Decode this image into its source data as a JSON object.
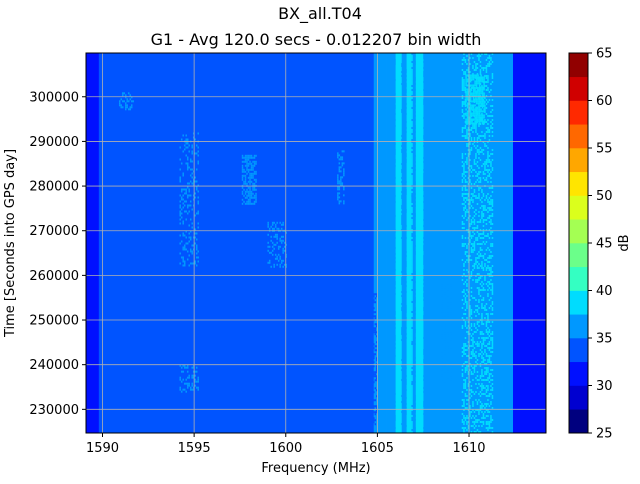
{
  "chart_data": {
    "type": "heatmap",
    "title": "BX_all.T04",
    "subtitle": "G1 - Avg 120.0 secs - 0.012207 bin width",
    "xlabel": "Frequency (MHz)",
    "ylabel": "Time [Seconds into GPS day]",
    "xlim": [
      1589.1,
      1614.2
    ],
    "ylim": [
      224700,
      309800
    ],
    "x_ticks": [
      1590,
      1595,
      1600,
      1605,
      1610
    ],
    "x_tick_labels": [
      "1590",
      "1595",
      "1600",
      "1605",
      "1610"
    ],
    "y_ticks": [
      230000,
      240000,
      250000,
      260000,
      270000,
      280000,
      290000,
      300000
    ],
    "y_tick_labels": [
      "230000",
      "240000",
      "250000",
      "260000",
      "270000",
      "280000",
      "290000",
      "300000"
    ],
    "grid": true,
    "colorbar": {
      "label": "dB",
      "min": 25,
      "max": 65,
      "step": 2.5,
      "ticks": [
        25,
        30,
        35,
        40,
        45,
        50,
        55,
        60,
        65
      ],
      "tick_labels": [
        "25",
        "30",
        "35",
        "40",
        "45",
        "50",
        "55",
        "60",
        "65"
      ],
      "colors": [
        "#00007f",
        "#0000d0",
        "#0010ff",
        "#0054ff",
        "#0098ff",
        "#00dcfe",
        "#34ffc2",
        "#6bff8a",
        "#a4ff53",
        "#dbff1c",
        "#ffe500",
        "#ffa700",
        "#ff6800",
        "#ff2900",
        "#d00000",
        "#910000"
      ]
    },
    "frequency_bands_db": [
      {
        "from": 1589.1,
        "to": 1589.8,
        "db": 31.5
      },
      {
        "from": 1589.8,
        "to": 1604.8,
        "db": 34
      },
      {
        "from": 1604.8,
        "to": 1605.5,
        "db": 36.2
      },
      {
        "from": 1605.5,
        "to": 1606.0,
        "db": 36.8
      },
      {
        "from": 1606.0,
        "to": 1606.3,
        "db": 38.6
      },
      {
        "from": 1606.3,
        "to": 1606.6,
        "db": 36.5
      },
      {
        "from": 1606.6,
        "to": 1606.85,
        "db": 38.6
      },
      {
        "from": 1606.85,
        "to": 1607.1,
        "db": 36.5
      },
      {
        "from": 1607.1,
        "to": 1607.5,
        "db": 38.6
      },
      {
        "from": 1607.5,
        "to": 1608.0,
        "db": 36.5
      },
      {
        "from": 1608.0,
        "to": 1612.4,
        "db": 36.8
      },
      {
        "from": 1612.4,
        "to": 1614.2,
        "db": 31.5
      }
    ],
    "features_db": [
      {
        "f_from": 1609.6,
        "f_to": 1611.3,
        "t_from": 224700,
        "t_to": 309800,
        "db": 39.5,
        "density": 0.35
      },
      {
        "f_from": 1609.8,
        "f_to": 1610.8,
        "t_from": 294000,
        "t_to": 305000,
        "db": 39.5,
        "density": 0.8
      },
      {
        "f_from": 1606.0,
        "f_to": 1606.3,
        "t_from": 224700,
        "t_to": 309800,
        "db": 39,
        "density": 0.7
      },
      {
        "f_from": 1606.6,
        "f_to": 1606.85,
        "t_from": 224700,
        "t_to": 309800,
        "db": 39,
        "density": 0.7
      },
      {
        "f_from": 1607.1,
        "f_to": 1607.5,
        "t_from": 224700,
        "t_to": 309800,
        "db": 39,
        "density": 0.6
      },
      {
        "f_from": 1608.4,
        "f_to": 1609.0,
        "t_from": 236000,
        "t_to": 258000,
        "db": 36.5,
        "density": 0.5
      },
      {
        "f_from": 1597.6,
        "f_to": 1598.4,
        "t_from": 276000,
        "t_to": 287000,
        "db": 36.5,
        "density": 0.6
      },
      {
        "f_from": 1594.2,
        "f_to": 1595.2,
        "t_from": 262000,
        "t_to": 292000,
        "db": 36.5,
        "density": 0.25
      },
      {
        "f_from": 1594.2,
        "f_to": 1595.2,
        "t_from": 234000,
        "t_to": 240000,
        "db": 36.5,
        "density": 0.3
      },
      {
        "f_from": 1599.0,
        "f_to": 1600.0,
        "t_from": 262000,
        "t_to": 272000,
        "db": 36.5,
        "density": 0.3
      },
      {
        "f_from": 1602.8,
        "f_to": 1603.2,
        "t_from": 276000,
        "t_to": 288000,
        "db": 36.5,
        "density": 0.4
      },
      {
        "f_from": 1590.9,
        "f_to": 1591.7,
        "t_from": 297000,
        "t_to": 301000,
        "db": 36.5,
        "density": 0.4
      },
      {
        "f_from": 1604.6,
        "f_to": 1605.0,
        "t_from": 226000,
        "t_to": 256000,
        "db": 34,
        "density": 0.4
      }
    ]
  }
}
